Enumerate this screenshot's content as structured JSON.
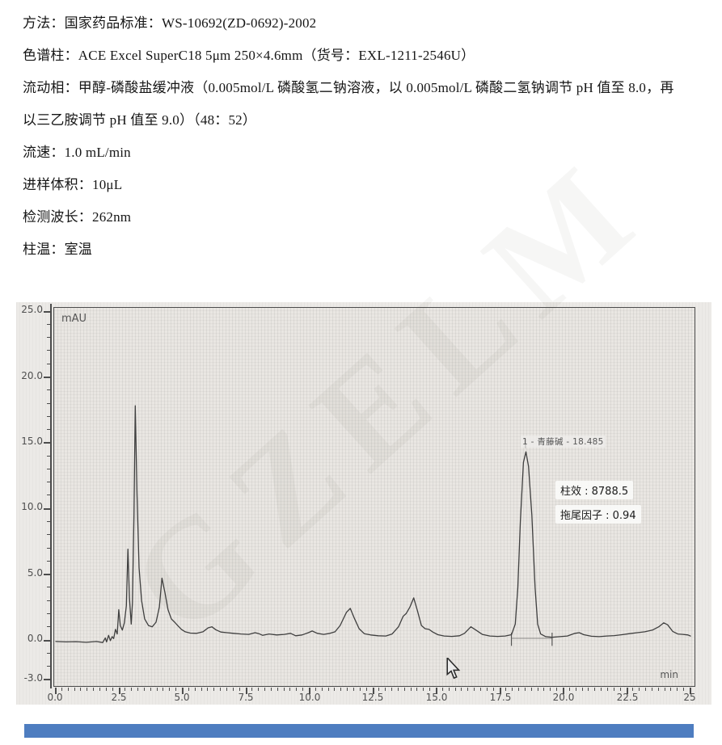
{
  "document": {
    "lines": [
      "方法：国家药品标准：WS-10692(ZD-0692)-2002",
      "色谱柱：ACE Excel SuperC18 5μm 250×4.6mm（货号：EXL-1211-2546U）",
      "流动相：甲醇-磷酸盐缓冲液（0.005mol/L 磷酸氢二钠溶液，以 0.005mol/L 磷酸二氢钠调节 pH 值至 8.0，再",
      "以三乙胺调节 pH 值至 9.0）（48：52）",
      "流速：1.0 mL/min",
      "进样体积：10μL",
      "检测波长：262nm",
      "柱温：室温"
    ]
  },
  "watermark_text": "GZELM",
  "chart": {
    "y_unit": "mAU",
    "x_unit": "min",
    "peak_label": "1 - 青藤碱 - 18.485",
    "column_efficiency_label": "柱效 : 8788.5",
    "tailing_factor_label": "拖尾因子 : 0.94",
    "y_tick_labels": [
      "25.0",
      "20.0",
      "15.0",
      "10.0",
      "5.0",
      "0.0",
      "-3.0"
    ],
    "x_tick_labels": [
      "0.0",
      "2.5",
      "5.0",
      "7.5",
      "10.0",
      "12.5",
      "15.0",
      "17.5",
      "20.0",
      "22.5",
      "25"
    ]
  },
  "chart_data": {
    "type": "line",
    "title": "",
    "xlabel": "min",
    "ylabel": "mAU",
    "xlim": [
      0,
      25
    ],
    "ylim": [
      -3,
      25
    ],
    "x_major_ticks": [
      0,
      2.5,
      5,
      7.5,
      10,
      12.5,
      15,
      17.5,
      20,
      22.5,
      25
    ],
    "y_major_ticks": [
      -3,
      0,
      5,
      10,
      15,
      20,
      25
    ],
    "grid": false,
    "line_color": "#3f3f3f",
    "peaks": [
      {
        "index": 1,
        "name": "青藤碱",
        "retention_time_min": 18.485,
        "height_mAU": 14.3,
        "column_efficiency": 8788.5,
        "tailing_factor": 0.94
      }
    ],
    "integration": {
      "start_t": 17.95,
      "end_t": 19.55,
      "baseline_mAU": 0.12,
      "apex_t": 18.5
    },
    "series": [
      {
        "name": "detector-signal",
        "points": [
          [
            0,
            -0.12
          ],
          [
            0.4,
            -0.15
          ],
          [
            0.8,
            -0.13
          ],
          [
            1.2,
            -0.18
          ],
          [
            1.6,
            -0.12
          ],
          [
            1.85,
            -0.2
          ],
          [
            1.95,
            0.15
          ],
          [
            2.0,
            -0.15
          ],
          [
            2.08,
            0.35
          ],
          [
            2.15,
            -0.05
          ],
          [
            2.22,
            0.25
          ],
          [
            2.28,
            0.1
          ],
          [
            2.35,
            0.8
          ],
          [
            2.42,
            0.45
          ],
          [
            2.48,
            2.3
          ],
          [
            2.54,
            1.1
          ],
          [
            2.62,
            0.75
          ],
          [
            2.7,
            1.3
          ],
          [
            2.78,
            2.6
          ],
          [
            2.84,
            6.9
          ],
          [
            2.9,
            3.2
          ],
          [
            2.97,
            1.2
          ],
          [
            3.02,
            2.8
          ],
          [
            3.08,
            9.5
          ],
          [
            3.13,
            17.8
          ],
          [
            3.2,
            11.0
          ],
          [
            3.28,
            5.5
          ],
          [
            3.38,
            3.0
          ],
          [
            3.5,
            1.6
          ],
          [
            3.65,
            1.1
          ],
          [
            3.8,
            1.0
          ],
          [
            3.95,
            1.35
          ],
          [
            4.08,
            2.5
          ],
          [
            4.18,
            4.7
          ],
          [
            4.3,
            3.6
          ],
          [
            4.42,
            2.3
          ],
          [
            4.55,
            1.6
          ],
          [
            4.68,
            1.35
          ],
          [
            4.8,
            1.1
          ],
          [
            4.95,
            0.8
          ],
          [
            5.1,
            0.62
          ],
          [
            5.3,
            0.52
          ],
          [
            5.55,
            0.5
          ],
          [
            5.8,
            0.62
          ],
          [
            6.0,
            0.92
          ],
          [
            6.15,
            1.0
          ],
          [
            6.3,
            0.78
          ],
          [
            6.5,
            0.6
          ],
          [
            6.75,
            0.55
          ],
          [
            7.0,
            0.5
          ],
          [
            7.3,
            0.45
          ],
          [
            7.6,
            0.42
          ],
          [
            7.85,
            0.55
          ],
          [
            8.0,
            0.48
          ],
          [
            8.15,
            0.35
          ],
          [
            8.4,
            0.45
          ],
          [
            8.7,
            0.38
          ],
          [
            9.0,
            0.42
          ],
          [
            9.25,
            0.5
          ],
          [
            9.45,
            0.32
          ],
          [
            9.7,
            0.38
          ],
          [
            9.95,
            0.55
          ],
          [
            10.1,
            0.68
          ],
          [
            10.3,
            0.5
          ],
          [
            10.55,
            0.42
          ],
          [
            10.8,
            0.5
          ],
          [
            11.0,
            0.62
          ],
          [
            11.2,
            1.1
          ],
          [
            11.45,
            2.1
          ],
          [
            11.6,
            2.4
          ],
          [
            11.75,
            1.7
          ],
          [
            11.95,
            0.85
          ],
          [
            12.15,
            0.48
          ],
          [
            12.4,
            0.38
          ],
          [
            12.7,
            0.32
          ],
          [
            13.0,
            0.3
          ],
          [
            13.25,
            0.45
          ],
          [
            13.5,
            1.0
          ],
          [
            13.68,
            1.8
          ],
          [
            13.8,
            2.0
          ],
          [
            13.95,
            2.5
          ],
          [
            14.1,
            3.2
          ],
          [
            14.25,
            2.2
          ],
          [
            14.4,
            1.1
          ],
          [
            14.55,
            0.85
          ],
          [
            14.7,
            0.8
          ],
          [
            14.85,
            0.6
          ],
          [
            15.05,
            0.4
          ],
          [
            15.3,
            0.3
          ],
          [
            15.6,
            0.27
          ],
          [
            15.9,
            0.32
          ],
          [
            16.1,
            0.5
          ],
          [
            16.35,
            1.0
          ],
          [
            16.55,
            0.75
          ],
          [
            16.8,
            0.42
          ],
          [
            17.1,
            0.3
          ],
          [
            17.4,
            0.27
          ],
          [
            17.7,
            0.3
          ],
          [
            17.95,
            0.4
          ],
          [
            18.1,
            1.2
          ],
          [
            18.2,
            4.0
          ],
          [
            18.3,
            9.0
          ],
          [
            18.42,
            13.5
          ],
          [
            18.52,
            14.3
          ],
          [
            18.62,
            13.2
          ],
          [
            18.75,
            9.5
          ],
          [
            18.88,
            4.0
          ],
          [
            18.98,
            1.2
          ],
          [
            19.1,
            0.45
          ],
          [
            19.3,
            0.25
          ],
          [
            19.55,
            0.2
          ],
          [
            19.85,
            0.25
          ],
          [
            20.15,
            0.3
          ],
          [
            20.45,
            0.5
          ],
          [
            20.62,
            0.55
          ],
          [
            20.8,
            0.4
          ],
          [
            21.1,
            0.28
          ],
          [
            21.4,
            0.25
          ],
          [
            21.7,
            0.3
          ],
          [
            22.0,
            0.33
          ],
          [
            22.3,
            0.4
          ],
          [
            22.6,
            0.48
          ],
          [
            22.9,
            0.55
          ],
          [
            23.2,
            0.62
          ],
          [
            23.5,
            0.75
          ],
          [
            23.75,
            1.0
          ],
          [
            23.95,
            1.3
          ],
          [
            24.1,
            1.15
          ],
          [
            24.3,
            0.65
          ],
          [
            24.5,
            0.45
          ],
          [
            24.7,
            0.42
          ],
          [
            24.9,
            0.38
          ],
          [
            25.0,
            0.3
          ]
        ]
      }
    ]
  }
}
